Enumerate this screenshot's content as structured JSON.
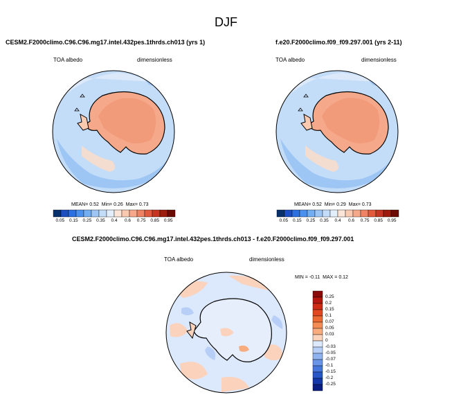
{
  "title": "DJF",
  "panels": [
    {
      "case": "CESM2.F2000climo.C96.C96.mg17.intel.432pes.1thrds.ch013 (yrs 1)",
      "variable": "TOA albedo",
      "units": "dimensionless",
      "stats": {
        "mean_label": "MEAN=",
        "mean": "0.52",
        "min_label": "Min=",
        "min": "0.26",
        "max_label": "Max=",
        "max": "0.73"
      }
    },
    {
      "case": "f.e20.F2000climo.f09_f09.297.001 (yrs 2-11)",
      "variable": "TOA albedo",
      "units": "dimensionless",
      "stats": {
        "mean_label": "MEAN=",
        "mean": "0.52",
        "min_label": "Min=",
        "min": "0.29",
        "max_label": "Max=",
        "max": "0.73"
      }
    }
  ],
  "diff": {
    "title": "CESM2.F2000climo.C96.C96.mg17.intel.432pes.1thrds.ch013 - f.e20.F2000climo.f09_f09.297.001",
    "variable": "TOA albedo",
    "units": "dimensionless",
    "minmax": {
      "min_label": "MIN =",
      "min": "-0.11",
      "max_label": "MAX =",
      "max": "0.12"
    }
  },
  "colorbar_abs": {
    "ticks": [
      "0.05",
      "0.15",
      "0.25",
      "0.35",
      "0.4",
      "0.6",
      "0.75",
      "0.85",
      "0.95"
    ],
    "colors": [
      "#08306b",
      "#1c4ec2",
      "#2b6fe0",
      "#4a90ee",
      "#74aef2",
      "#9ec6f5",
      "#c3dcf8",
      "#e3eefb",
      "#fbe4d8",
      "#f9c9b0",
      "#f5a98a",
      "#ee8262",
      "#e05a3e",
      "#c43623",
      "#9c1c0e",
      "#6b0a02"
    ]
  },
  "colorbar_diff": {
    "ticks": [
      "0.25",
      "0.2",
      "0.15",
      "0.1",
      "0.07",
      "0.05",
      "0.03",
      "0",
      "-0.03",
      "-0.05",
      "-0.07",
      "-0.1",
      "-0.15",
      "-0.2",
      "-0.25"
    ],
    "colors": [
      "#8b0a0a",
      "#b5170f",
      "#cf2b14",
      "#e2481f",
      "#ee6a34",
      "#f48d55",
      "#f8ac7d",
      "#fbd2bb",
      "#dce8fb",
      "#b7cff7",
      "#8fb2f0",
      "#6a94e8",
      "#4676dc",
      "#2656c8",
      "#1336a8",
      "#0a1d80"
    ]
  },
  "chart_data": [
    {
      "type": "heatmap",
      "title": "CESM2.F2000climo.C96.C96.mg17.intel.432pes.1thrds.ch013 (yrs 1)",
      "variable": "TOA albedo",
      "units": "dimensionless",
      "projection": "south polar stereographic",
      "levels": [
        0.05,
        0.15,
        0.25,
        0.35,
        0.4,
        0.6,
        0.75,
        0.85,
        0.95
      ],
      "mean": 0.52,
      "min": 0.26,
      "max": 0.73
    },
    {
      "type": "heatmap",
      "title": "f.e20.F2000climo.f09_f09.297.001 (yrs 2-11)",
      "variable": "TOA albedo",
      "units": "dimensionless",
      "projection": "south polar stereographic",
      "levels": [
        0.05,
        0.15,
        0.25,
        0.35,
        0.4,
        0.6,
        0.75,
        0.85,
        0.95
      ],
      "mean": 0.52,
      "min": 0.29,
      "max": 0.73
    },
    {
      "type": "heatmap",
      "title": "CESM2.F2000climo.C96.C96.mg17.intel.432pes.1thrds.ch013 - f.e20.F2000climo.f09_f09.297.001",
      "variable": "TOA albedo",
      "units": "dimensionless",
      "projection": "south polar stereographic",
      "levels": [
        -0.25,
        -0.2,
        -0.15,
        -0.1,
        -0.07,
        -0.05,
        -0.03,
        0,
        0.03,
        0.05,
        0.07,
        0.1,
        0.15,
        0.2,
        0.25
      ],
      "min": -0.11,
      "max": 0.12
    }
  ]
}
